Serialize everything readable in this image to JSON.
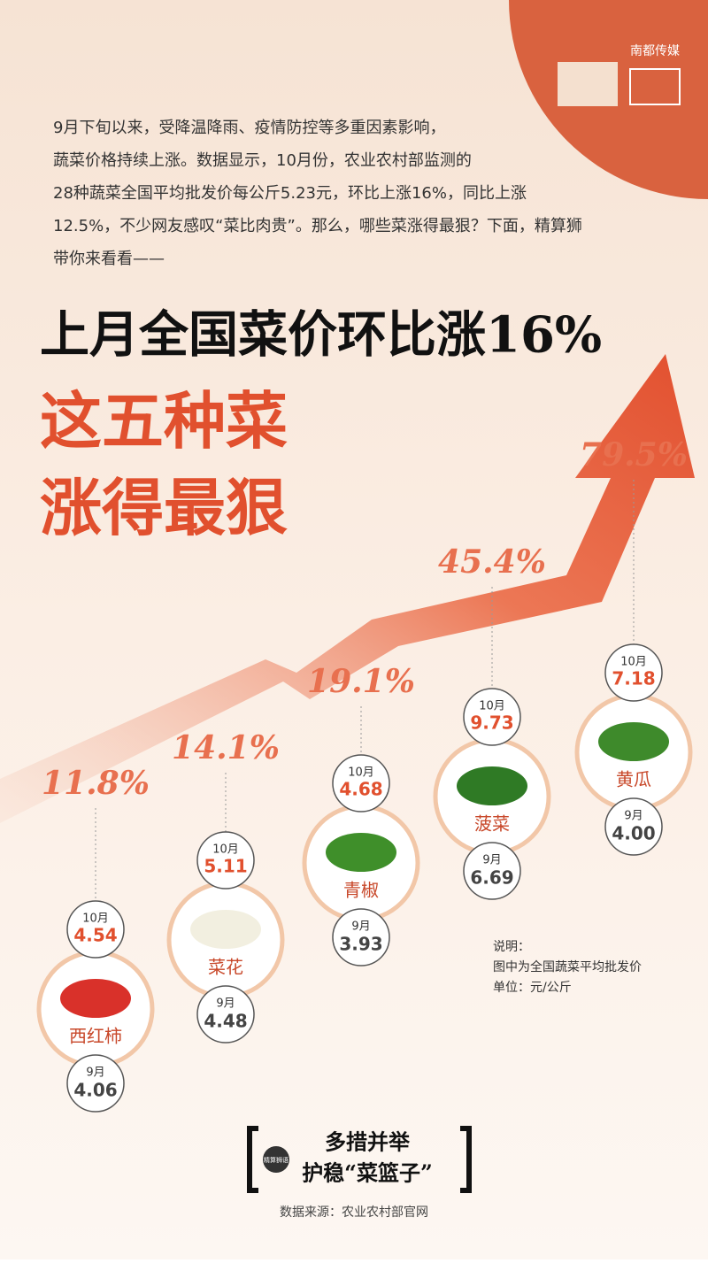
{
  "header": {
    "logo": "南都传媒"
  },
  "intro": [
    "9月下旬以来，受降温降雨、疫情防控等多重因素影响，",
    "蔬菜价格持续上涨。数据显示，10月份，农业农村部监测的",
    "28种蔬菜全国平均批发价每公斤5.23元，环比上涨16%，同比上涨",
    "12.5%，不少网友感叹“菜比肉贵”。那么，哪些菜涨得最狠？下面，精算狮",
    "带你来看看——"
  ],
  "title": {
    "line1": "上月全国菜价环比涨16%",
    "line2": "这五种菜",
    "line3": "涨得最狠"
  },
  "items": [
    {
      "name": "西红柿",
      "pct": "11.8%",
      "oct_label": "10月",
      "oct_price": "4.54",
      "sep_label": "9月",
      "sep_price": "4.06"
    },
    {
      "name": "菜花",
      "pct": "14.1%",
      "oct_label": "10月",
      "oct_price": "5.11",
      "sep_label": "9月",
      "sep_price": "4.48"
    },
    {
      "name": "青椒",
      "pct": "19.1%",
      "oct_label": "10月",
      "oct_price": "4.68",
      "sep_label": "9月",
      "sep_price": "3.93"
    },
    {
      "name": "菠菜",
      "pct": "45.4%",
      "oct_label": "10月",
      "oct_price": "9.73",
      "sep_label": "9月",
      "sep_price": "6.69"
    },
    {
      "name": "黄瓜",
      "pct": "79.5%",
      "oct_label": "10月",
      "oct_price": "7.18",
      "sep_label": "9月",
      "sep_price": "4.00"
    }
  ],
  "note": [
    "说明：",
    "图中为全国蔬菜平均批发价",
    "单位：元/公斤"
  ],
  "footer": {
    "badge": "精算狮语",
    "slogan1": "多措并举",
    "slogan2": "护稳“菜篮子”",
    "source": "数据来源：农业农村部官网"
  }
}
